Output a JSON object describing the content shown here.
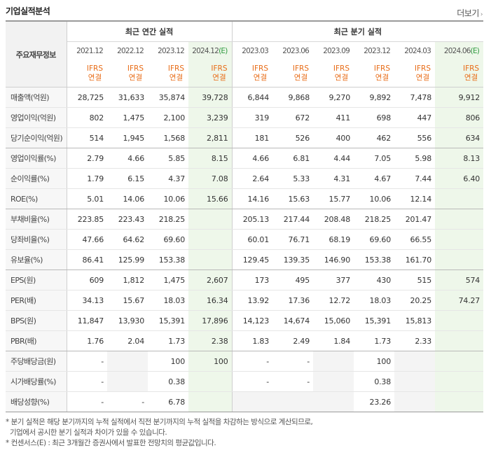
{
  "header": {
    "title": "기업실적분석",
    "more_label": "더보기"
  },
  "table": {
    "first_col_header": "주요재무정보",
    "group_annual": "최근 연간 실적",
    "group_quarter": "최근 분기 실적",
    "ifrs_line1": "IFRS",
    "ifrs_line2": "연결",
    "periods": [
      {
        "label": "2021.12",
        "est": ""
      },
      {
        "label": "2022.12",
        "est": ""
      },
      {
        "label": "2023.12",
        "est": ""
      },
      {
        "label": "2024.12",
        "est": "(E)"
      },
      {
        "label": "2023.03",
        "est": ""
      },
      {
        "label": "2023.06",
        "est": ""
      },
      {
        "label": "2023.09",
        "est": ""
      },
      {
        "label": "2023.12",
        "est": ""
      },
      {
        "label": "2024.03",
        "est": ""
      },
      {
        "label": "2024.06",
        "est": "(E)"
      }
    ],
    "rows": [
      {
        "label": "매출액(억원)",
        "values": [
          "28,725",
          "31,633",
          "35,874",
          "39,728",
          "6,844",
          "9,868",
          "9,270",
          "9,892",
          "7,478",
          "9,912"
        ]
      },
      {
        "label": "영업이익(억원)",
        "values": [
          "802",
          "1,475",
          "2,100",
          "3,239",
          "319",
          "672",
          "411",
          "698",
          "447",
          "806"
        ]
      },
      {
        "label": "당기순이익(억원)",
        "values": [
          "514",
          "1,945",
          "1,568",
          "2,811",
          "181",
          "526",
          "400",
          "462",
          "556",
          "634"
        ]
      },
      {
        "label": "영업이익률(%)",
        "values": [
          "2.79",
          "4.66",
          "5.85",
          "8.15",
          "4.66",
          "6.81",
          "4.44",
          "7.05",
          "5.98",
          "8.13"
        ]
      },
      {
        "label": "순이익률(%)",
        "values": [
          "1.79",
          "6.15",
          "4.37",
          "7.08",
          "2.64",
          "5.33",
          "4.31",
          "4.67",
          "7.44",
          "6.40"
        ]
      },
      {
        "label": "ROE(%)",
        "values": [
          "5.01",
          "14.06",
          "10.06",
          "15.66",
          "14.16",
          "15.63",
          "15.77",
          "10.06",
          "12.14",
          ""
        ]
      },
      {
        "label": "부채비율(%)",
        "values": [
          "223.85",
          "223.43",
          "218.25",
          "",
          "205.13",
          "217.44",
          "208.48",
          "218.25",
          "201.47",
          ""
        ]
      },
      {
        "label": "당좌비율(%)",
        "values": [
          "47.66",
          "64.62",
          "69.60",
          "",
          "60.01",
          "76.71",
          "68.19",
          "69.60",
          "66.55",
          ""
        ]
      },
      {
        "label": "유보율(%)",
        "values": [
          "86.41",
          "125.99",
          "153.38",
          "",
          "129.45",
          "139.35",
          "146.90",
          "153.38",
          "161.70",
          ""
        ]
      },
      {
        "label": "EPS(원)",
        "values": [
          "609",
          "1,812",
          "1,475",
          "2,607",
          "173",
          "495",
          "377",
          "430",
          "515",
          "574"
        ]
      },
      {
        "label": "PER(배)",
        "values": [
          "34.13",
          "15.67",
          "18.03",
          "16.34",
          "13.92",
          "17.36",
          "12.72",
          "18.03",
          "20.25",
          "74.27"
        ]
      },
      {
        "label": "BPS(원)",
        "values": [
          "11,847",
          "13,930",
          "15,391",
          "17,896",
          "14,123",
          "14,674",
          "15,060",
          "15,391",
          "15,813",
          ""
        ]
      },
      {
        "label": "PBR(배)",
        "values": [
          "1.76",
          "2.04",
          "1.73",
          "2.38",
          "1.83",
          "2.49",
          "1.84",
          "1.73",
          "2.33",
          ""
        ]
      },
      {
        "label": "주당배당금(원)",
        "values": [
          "-",
          "",
          "100",
          "100",
          "-",
          "-",
          "",
          "100",
          "",
          ""
        ]
      },
      {
        "label": "시가배당률(%)",
        "values": [
          "-",
          "",
          "0.38",
          "",
          "-",
          "-",
          "",
          "0.38",
          "",
          ""
        ]
      },
      {
        "label": "배당성향(%)",
        "values": [
          "-",
          "-",
          "6.78",
          "",
          "",
          "",
          "",
          "23.26",
          "",
          ""
        ]
      }
    ]
  },
  "notes": [
    "* 분기 실적은 해당 분기까지의 누적 실적에서 직전 분기까지의 누적 실적을 차감하는 방식으로 계산되므로,",
    "기업에서 공시한 분기 실적과 차이가 있을 수 있습니다.",
    "* 컨센서스(E) : 최근 3개월간 증권사에서 발표한 전망치의 평균값입니다."
  ]
}
